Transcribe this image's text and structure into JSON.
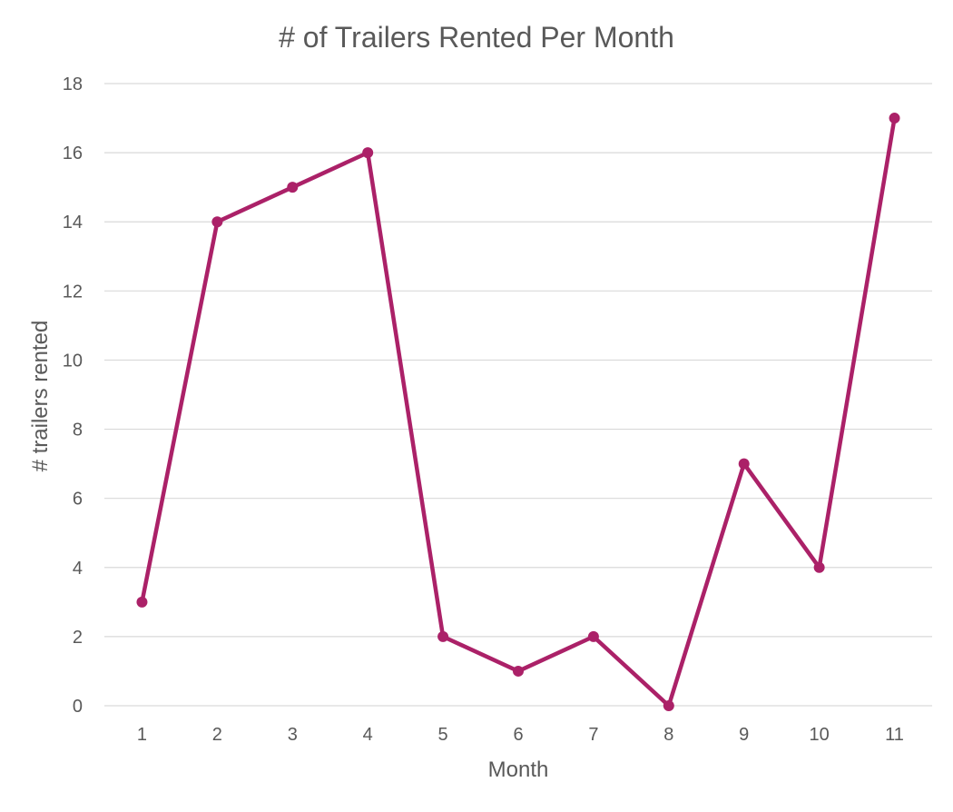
{
  "chart_data": {
    "type": "line",
    "title": "# of Trailers Rented Per Month",
    "xlabel": "Month",
    "ylabel": "# trailers rented",
    "categories": [
      "1",
      "2",
      "3",
      "4",
      "5",
      "6",
      "7",
      "8",
      "9",
      "10",
      "11"
    ],
    "series": [
      {
        "values": [
          3,
          14,
          15,
          16,
          2,
          1,
          2,
          0,
          7,
          4,
          17
        ],
        "color": "#AB2168"
      }
    ],
    "ylim": [
      0,
      18
    ],
    "yticks": [
      0,
      2,
      4,
      6,
      8,
      10,
      12,
      14,
      16,
      18
    ],
    "grid": true,
    "legend": "none",
    "markers": true
  }
}
